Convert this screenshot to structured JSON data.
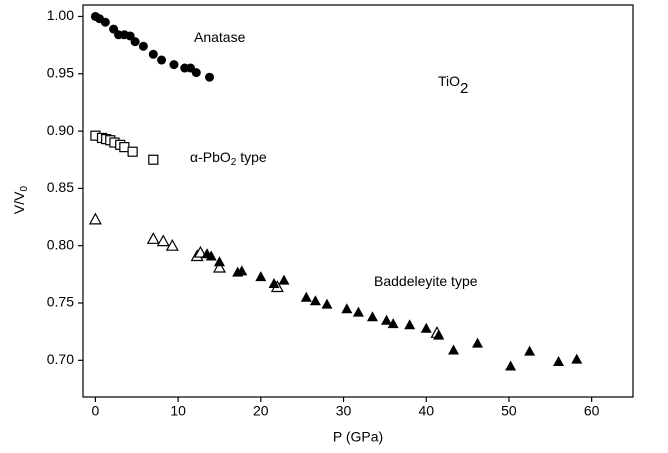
{
  "chart_data": {
    "type": "scatter",
    "x_label": "P (GPa)",
    "y_label": [
      "V/V",
      "0"
    ],
    "xlim": [
      -1.5,
      65.0
    ],
    "xticks": [
      0,
      10,
      20,
      30,
      40,
      50,
      60
    ],
    "ylim": [
      0.668,
      1.01
    ],
    "yticks": [
      {
        "value": 0.7,
        "label": "0.70"
      },
      0.75,
      {
        "value": 0.8,
        "label": "0.80"
      },
      0.85,
      {
        "value": 0.9,
        "label": "0.90"
      },
      0.95,
      {
        "value": 1.0,
        "label": "1.00"
      }
    ],
    "annotations": [
      {
        "parts": [
          "TiO",
          "2"
        ]
      },
      {
        "parts": [
          "Anatase"
        ]
      },
      {
        "parts": [
          "α-PbO",
          "2",
          " type"
        ]
      },
      {
        "parts": [
          "Baddeleyite type"
        ]
      }
    ],
    "series": [
      {
        "marker": "filled-circle",
        "color": "#000000",
        "x": [
          0,
          0.5,
          1.2,
          2.2,
          2.8,
          3.5,
          4.2,
          4.8,
          5.8,
          7,
          8,
          9.5,
          10.8,
          11.5,
          12.2,
          13.8
        ],
        "values": [
          1.0,
          0.998,
          0.995,
          0.989,
          0.984,
          0.984,
          0.983,
          0.978,
          0.974,
          0.967,
          0.962,
          0.958,
          0.955,
          0.955,
          0.951,
          0.947
        ]
      },
      {
        "marker": "open-square",
        "color": "#000000",
        "x": [
          0,
          0.8,
          1.3,
          1.8,
          2.3,
          3,
          3.5,
          4.5,
          7
        ],
        "values": [
          0.896,
          0.894,
          0.893,
          0.892,
          0.89,
          0.888,
          0.886,
          0.882,
          0.875
        ]
      },
      {
        "marker": "open-triangle",
        "color": "#000000",
        "x": [
          0,
          7,
          8.2,
          9.3,
          12.3,
          12.7,
          15,
          22,
          41.3
        ],
        "values": [
          0.823,
          0.806,
          0.804,
          0.8,
          0.791,
          0.794,
          0.781,
          0.764,
          0.724
        ]
      },
      {
        "marker": "filled-triangle",
        "color": "#000000",
        "x": [
          13.5,
          14,
          15,
          17.2,
          17.7,
          20,
          21.6,
          22.8,
          25.5,
          26.6,
          28,
          30.4,
          31.8,
          33.5,
          35.2,
          36,
          38,
          40,
          41.5,
          43.3,
          46.2,
          50.2,
          52.5,
          56,
          58.2
        ],
        "values": [
          0.793,
          0.791,
          0.786,
          0.777,
          0.778,
          0.773,
          0.767,
          0.77,
          0.755,
          0.752,
          0.749,
          0.745,
          0.742,
          0.738,
          0.735,
          0.732,
          0.731,
          0.728,
          0.722,
          0.709,
          0.715,
          0.695,
          0.708,
          0.699,
          0.701
        ]
      }
    ]
  }
}
